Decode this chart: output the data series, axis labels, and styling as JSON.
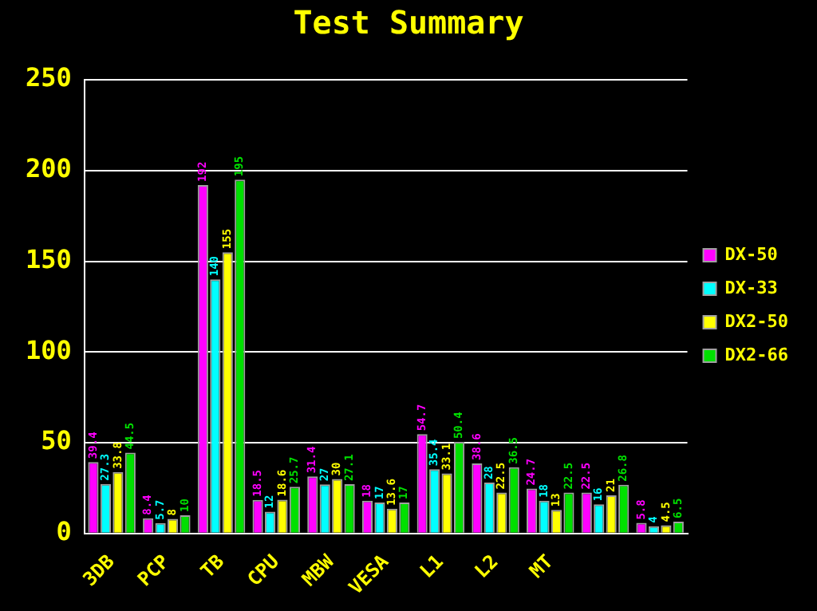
{
  "chart_data": {
    "type": "bar",
    "title": "Test Summary",
    "categories": [
      "3DB",
      "PCP",
      "TB",
      "CPU",
      "MBW",
      "VESA",
      "L1",
      "L2",
      "MT",
      null,
      null
    ],
    "series": [
      {
        "name": "DX-50",
        "color": "#ff00ff",
        "values": [
          39.4,
          8.4,
          192,
          18.5,
          31.4,
          18,
          54.7,
          38.6,
          24.7,
          22.5,
          5.8
        ]
      },
      {
        "name": "DX-33",
        "color": "#00ffff",
        "values": [
          27.3,
          5.7,
          140,
          12,
          27,
          17,
          35.4,
          28,
          18,
          16,
          4
        ]
      },
      {
        "name": "DX2-50",
        "color": "#ffff00",
        "values": [
          33.8,
          8,
          155,
          18.6,
          30,
          13.6,
          33.1,
          22.5,
          13,
          21,
          4.5
        ]
      },
      {
        "name": "DX2-66",
        "color": "#00e000",
        "values": [
          44.5,
          10,
          195,
          25.7,
          27.1,
          17,
          50.4,
          36.5,
          22.5,
          26.8,
          6.5
        ]
      }
    ],
    "ylim": [
      0,
      250
    ],
    "yticks": [
      0,
      50,
      100,
      150,
      200,
      250
    ],
    "grid": "y",
    "legend": "right",
    "data_labels": true
  }
}
